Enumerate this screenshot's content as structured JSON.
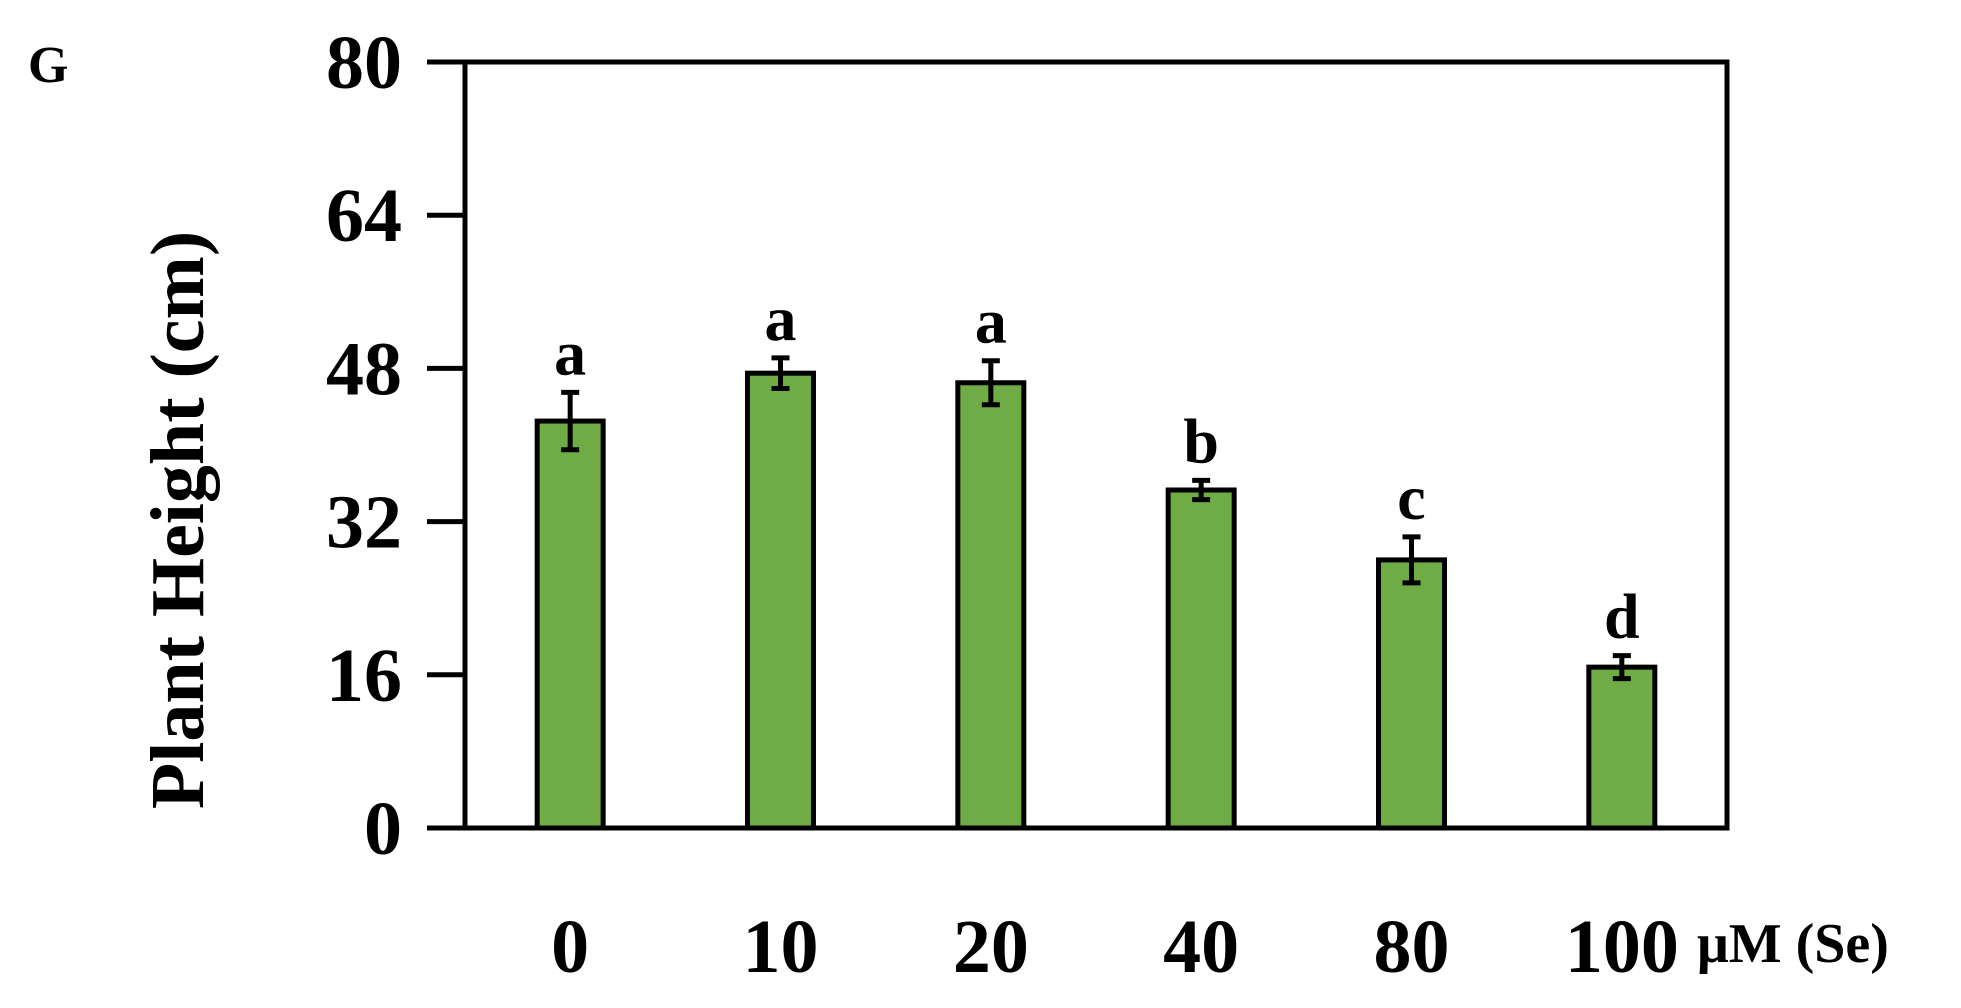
{
  "panel_label": "G",
  "chart_data": {
    "type": "bar",
    "categories": [
      "0",
      "10",
      "20",
      "40",
      "80",
      "100"
    ],
    "values": [
      42.5,
      47.5,
      46.5,
      35.3,
      28.0,
      16.8
    ],
    "errors": [
      3.0,
      1.6,
      2.3,
      1.0,
      2.4,
      1.2
    ],
    "significance_labels": [
      "a",
      "a",
      "a",
      "b",
      "c",
      "d"
    ],
    "title": "",
    "xlabel": "",
    "ylabel": "Plant Height (cm)",
    "x_unit_label": "μM (Se)",
    "ylim": [
      0,
      80
    ],
    "yticks": [
      0,
      16,
      32,
      48,
      64,
      80
    ],
    "bar_color": "#6fac46",
    "grid": false,
    "legend": "none"
  }
}
